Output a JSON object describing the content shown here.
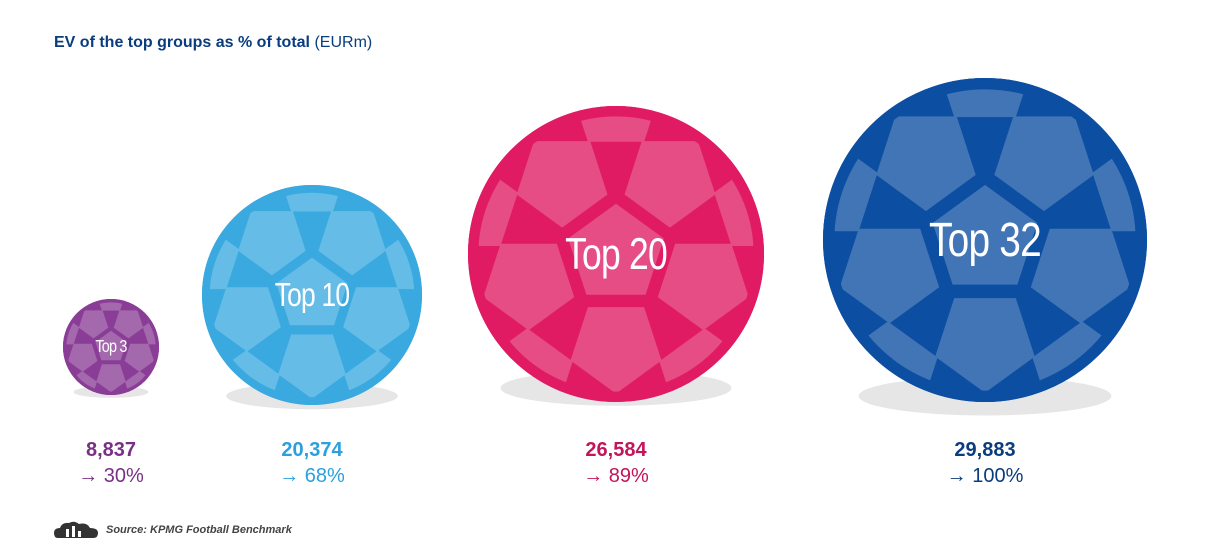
{
  "title": {
    "main": "EV of the top groups as % of total",
    "unit": "(EURm)"
  },
  "chart_data": {
    "type": "bubble",
    "categories": [
      "Top 3",
      "Top 10",
      "Top 20",
      "Top 32"
    ],
    "values": [
      8837,
      20374,
      26584,
      29883
    ],
    "value_labels": [
      "8,837",
      "20,374",
      "26,584",
      "29,883"
    ],
    "percent_labels": [
      "30%",
      "68%",
      "89%",
      "100%"
    ],
    "percents": [
      30,
      68,
      89,
      100
    ],
    "arrow": "→",
    "colors": [
      "#8a3d96",
      "#3aa9e0",
      "#e01b63",
      "#0b4ea2"
    ],
    "text_colors": [
      "#7a2f87",
      "#2aa0dc",
      "#c4145a",
      "#0a3d7e"
    ]
  },
  "source": {
    "label": "Source: KPMG Football Benchmark",
    "icon": "bar-cloud-icon"
  }
}
